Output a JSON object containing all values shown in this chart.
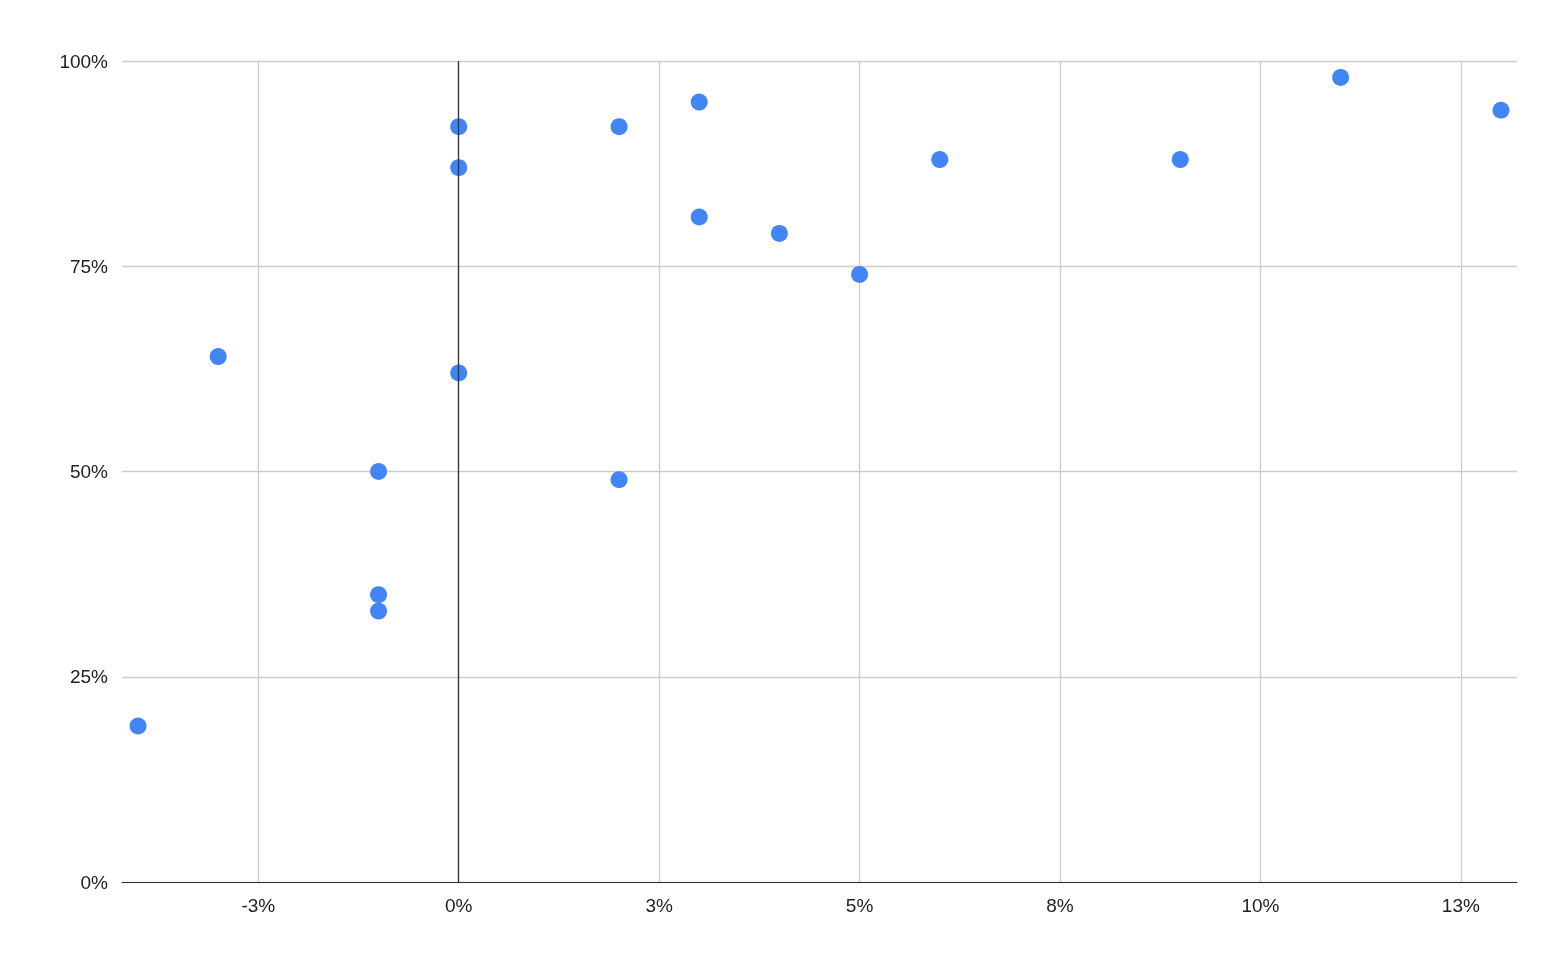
{
  "chart_data": {
    "type": "scatter",
    "x": [
      -4.0,
      -3.0,
      -1.0,
      -1.0,
      -1.0,
      0,
      0,
      0,
      2.0,
      2.0,
      3.0,
      3.0,
      4.0,
      5.0,
      6.0,
      9.0,
      11.0,
      13.0
    ],
    "values": [
      19,
      64,
      50,
      35,
      33,
      92,
      87,
      62,
      92,
      49,
      95,
      81,
      79,
      74,
      88,
      88,
      98,
      94
    ],
    "color": "#4285f4",
    "marker": "circle",
    "grid": true,
    "xlim": [
      -4.2,
      13.2
    ],
    "xticks": [
      {
        "value": -2.5,
        "label": "-3%"
      },
      {
        "value": 0,
        "label": "0%"
      },
      {
        "value": 2.5,
        "label": "3%"
      },
      {
        "value": 5,
        "label": "5%"
      },
      {
        "value": 7.5,
        "label": "8%"
      },
      {
        "value": 10,
        "label": "10%"
      },
      {
        "value": 12.5,
        "label": "13%"
      }
    ],
    "ylim": [
      0,
      100
    ],
    "yticks": [
      {
        "value": 0,
        "label": "0%"
      },
      {
        "value": 25,
        "label": "25%"
      },
      {
        "value": 50,
        "label": "50%"
      },
      {
        "value": 75,
        "label": "75%"
      },
      {
        "value": 100,
        "label": "100%"
      }
    ],
    "ref_lines": [
      {
        "axis": "x",
        "value": 0,
        "color": "#333333"
      }
    ]
  }
}
